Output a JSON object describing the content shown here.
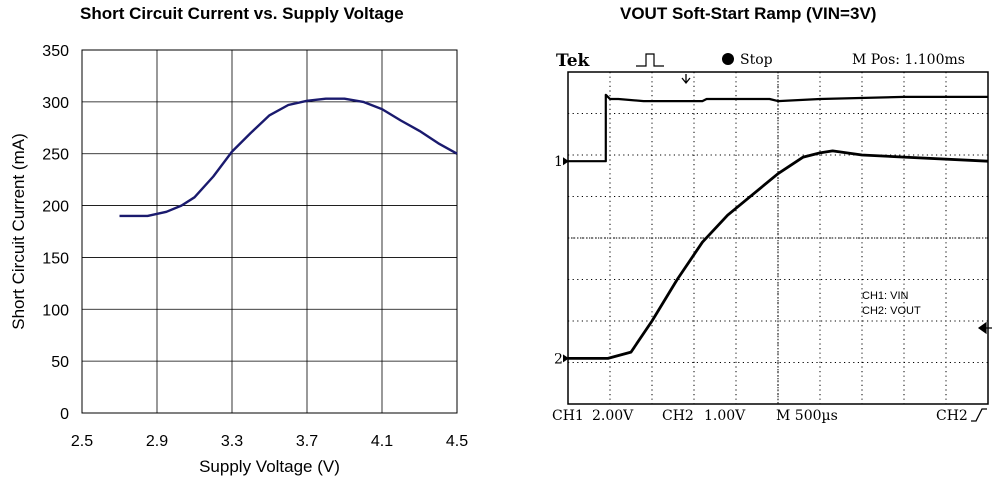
{
  "chart_data": [
    {
      "type": "line",
      "title": "Short Circuit Current vs. Supply Voltage",
      "xlabel": "Supply Voltage (V)",
      "ylabel": "Short Circuit Current (mA)",
      "xlim": [
        2.5,
        4.5
      ],
      "ylim": [
        0,
        350
      ],
      "xticks": [
        "2.5",
        "2.9",
        "3.3",
        "3.7",
        "4.1",
        "4.5"
      ],
      "yticks": [
        "0",
        "50",
        "100",
        "150",
        "200",
        "250",
        "300",
        "350"
      ],
      "grid": true,
      "line_color": "#1a1a6e",
      "series": [
        {
          "x": [
            2.7,
            2.85,
            2.95,
            3.03,
            3.1,
            3.2,
            3.3,
            3.4,
            3.5,
            3.6,
            3.7,
            3.8,
            3.9,
            4.0,
            4.1,
            4.2,
            4.3,
            4.4,
            4.5
          ],
          "y": [
            190,
            190,
            194,
            200,
            208,
            228,
            252,
            270,
            287,
            297,
            301,
            303,
            303,
            300,
            293,
            282,
            272,
            260,
            250
          ]
        }
      ]
    },
    {
      "type": "line",
      "title": "VOUT Soft-Start Ramp (VIN=3V)",
      "brand": "Tek",
      "status": "Stop",
      "mpos": "M Pos: 1.100ms",
      "legend": [
        "CH1: VIN",
        "CH2: VOUT"
      ],
      "ch1_marker": "1",
      "ch2_marker": "2",
      "bottom": {
        "ch1": "CH1",
        "ch1_scale": "2.00V",
        "ch2": "CH2",
        "ch2_scale": "1.00V",
        "time": "M 500µs",
        "trigger": "CH2"
      },
      "divisions": {
        "x": 10,
        "y": 8
      },
      "x_unit": "div",
      "y_unit": "div",
      "series": [
        {
          "name": "CH1: VIN",
          "x": [
            0,
            0.9,
            0.9,
            1.0,
            1.2,
            1.8,
            2.5,
            3.2,
            3.3,
            4.8,
            5.0,
            6.0,
            8.0,
            10.0
          ],
          "y": [
            5.85,
            5.85,
            7.45,
            7.35,
            7.35,
            7.3,
            7.3,
            7.3,
            7.35,
            7.35,
            7.3,
            7.35,
            7.4,
            7.4
          ]
        },
        {
          "name": "CH2: VOUT",
          "x": [
            0,
            0.95,
            1.5,
            2.0,
            2.6,
            3.2,
            3.8,
            4.4,
            5.0,
            5.6,
            6.0,
            6.3,
            7.0,
            8.0,
            10.0
          ],
          "y": [
            1.1,
            1.1,
            1.25,
            2.0,
            3.0,
            3.9,
            4.55,
            5.05,
            5.55,
            5.95,
            6.05,
            6.1,
            6.0,
            5.95,
            5.85
          ]
        }
      ]
    }
  ]
}
